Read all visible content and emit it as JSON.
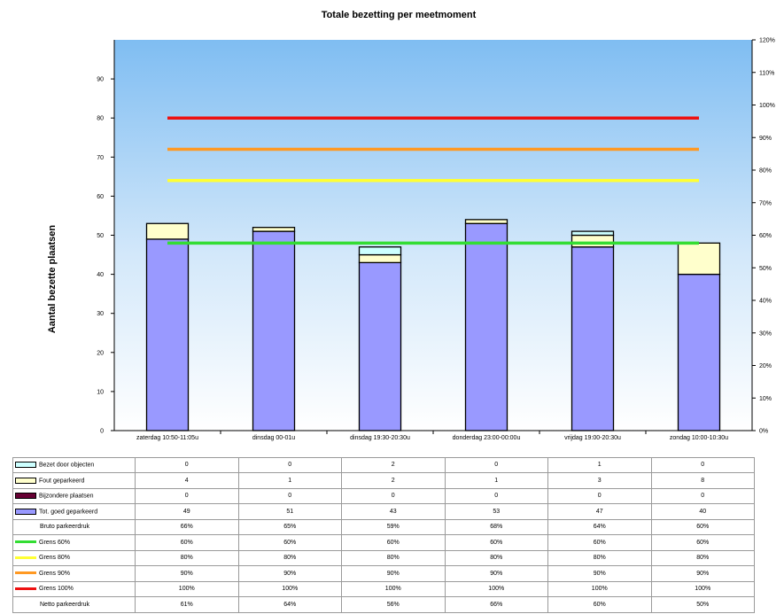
{
  "chart_data": {
    "type": "bar",
    "title": "Totale bezetting per meetmoment",
    "ylabel": "Aantal bezette plaatsen",
    "ylim": [
      0,
      100
    ],
    "y_ticks": [
      "0",
      "10",
      "20",
      "30",
      "40",
      "50",
      "60",
      "70",
      "80",
      "90"
    ],
    "y2lim": [
      0,
      120
    ],
    "y2_ticks": [
      "0%",
      "10%",
      "20%",
      "30%",
      "40%",
      "50%",
      "60%",
      "70%",
      "80%",
      "90%",
      "100%",
      "110%",
      "120%"
    ],
    "capacity": 80,
    "categories": [
      "zaterdag 10:50-11:05u",
      "dinsdag 00-01u",
      "dinsdag 19:30-20:30u",
      "donderdag 23:00-00:00u",
      "vrijdag 19:00-20:30u",
      "zondag 10:00-10:30u"
    ],
    "series": [
      {
        "name": "Tot. goed geparkeerd",
        "color": "#9999ff",
        "values": [
          49,
          51,
          43,
          53,
          47,
          40
        ]
      },
      {
        "name": "Bijzondere plaatsen",
        "color": "#660033",
        "values": [
          0,
          0,
          0,
          0,
          0,
          0
        ]
      },
      {
        "name": "Fout geparkeerd",
        "color": "#ffffcc",
        "values": [
          4,
          1,
          2,
          1,
          3,
          8
        ]
      },
      {
        "name": "Bezet door objecten",
        "color": "#ccffff",
        "values": [
          0,
          0,
          2,
          0,
          1,
          0
        ]
      }
    ],
    "lines": [
      {
        "name": "Grens 60%",
        "color": "#33dd33",
        "percent": 60
      },
      {
        "name": "Grens 80%",
        "color": "#ffff33",
        "percent": 80
      },
      {
        "name": "Grens 90%",
        "color": "#ff9922",
        "percent": 90
      },
      {
        "name": "Grens 100%",
        "color": "#ee1111",
        "percent": 100
      }
    ],
    "table_rows": [
      {
        "label": "Bezet door objecten",
        "legend": "box",
        "color": "#ccffff",
        "values": [
          "0",
          "0",
          "2",
          "0",
          "1",
          "0"
        ]
      },
      {
        "label": "Fout geparkeerd",
        "legend": "box",
        "color": "#ffffcc",
        "values": [
          "4",
          "1",
          "2",
          "1",
          "3",
          "8"
        ]
      },
      {
        "label": "Bijzondere plaatsen",
        "legend": "box",
        "color": "#660033",
        "values": [
          "0",
          "0",
          "0",
          "0",
          "0",
          "0"
        ]
      },
      {
        "label": "Tot. goed geparkeerd",
        "legend": "box",
        "color": "#9999ff",
        "values": [
          "49",
          "51",
          "43",
          "53",
          "47",
          "40"
        ]
      },
      {
        "label": "Bruto parkeerdruk",
        "legend": "none",
        "color": "",
        "values": [
          "66%",
          "65%",
          "59%",
          "68%",
          "64%",
          "60%"
        ]
      },
      {
        "label": "Grens 60%",
        "legend": "line",
        "color": "#33dd33",
        "values": [
          "60%",
          "60%",
          "60%",
          "60%",
          "60%",
          "60%"
        ]
      },
      {
        "label": "Grens 80%",
        "legend": "line",
        "color": "#ffff33",
        "values": [
          "80%",
          "80%",
          "80%",
          "80%",
          "80%",
          "80%"
        ]
      },
      {
        "label": "Grens 90%",
        "legend": "line",
        "color": "#ff9922",
        "values": [
          "90%",
          "90%",
          "90%",
          "90%",
          "90%",
          "90%"
        ]
      },
      {
        "label": "Grens 100%",
        "legend": "line",
        "color": "#ee1111",
        "values": [
          "100%",
          "100%",
          "100%",
          "100%",
          "100%",
          "100%"
        ]
      },
      {
        "label": "Netto parkeerdruk",
        "legend": "none",
        "color": "",
        "values": [
          "61%",
          "64%",
          "56%",
          "66%",
          "60%",
          "50%"
        ]
      }
    ]
  }
}
